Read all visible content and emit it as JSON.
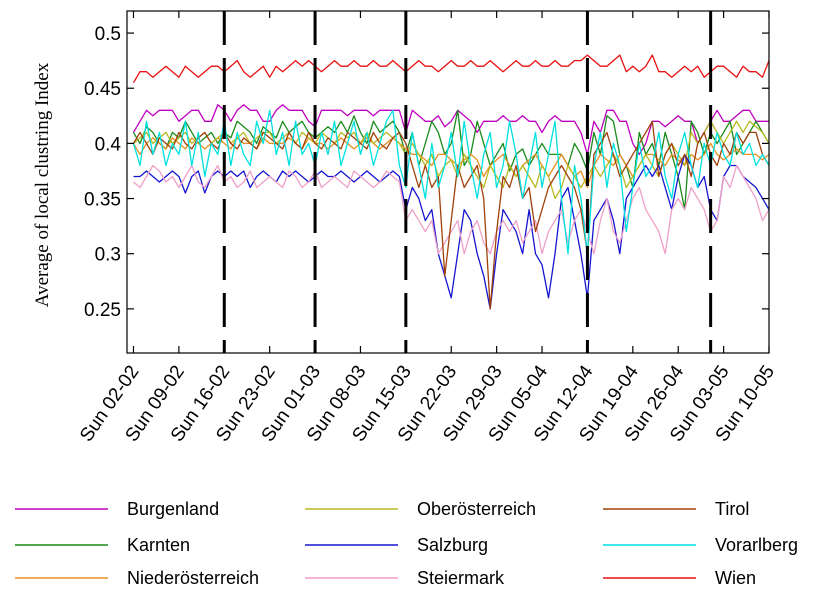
{
  "chart_data": {
    "type": "line",
    "title": "",
    "xlabel": "",
    "ylabel": "Average of local clustring Index",
    "ylim": [
      0.21,
      0.52
    ],
    "yticks": [
      0.25,
      0.3,
      0.35,
      0.4,
      0.45,
      0.5
    ],
    "ytick_labels": [
      "0.25",
      "0.3",
      "0.35",
      "0.4",
      "0.45",
      "0.5"
    ],
    "x_range_days": [
      -1,
      98
    ],
    "xtick_days": [
      0,
      7,
      14,
      21,
      28,
      35,
      42,
      49,
      56,
      63,
      70,
      77,
      84,
      91,
      98
    ],
    "xtick_labels": [
      "Sun 02-02",
      "Sun 09-02",
      "Sun 16-02",
      "Sun 23-02",
      "Sun 01-03",
      "Sun 08-03",
      "Sun 15-03",
      "Sun 22-03",
      "Sun 29-03",
      "Sun 05-04",
      "Sun 12-04",
      "Sun 19-04",
      "Sun 26-04",
      "Sun 03-05",
      "Sun 10-05"
    ],
    "vlines_days": [
      14,
      28,
      42,
      70,
      89
    ],
    "grid": false,
    "legend_position": "bottom",
    "series": [
      {
        "name": "Burgenland",
        "color": "#c000c0",
        "values": [
          0.41,
          0.42,
          0.43,
          0.425,
          0.43,
          0.43,
          0.43,
          0.42,
          0.425,
          0.43,
          0.43,
          0.42,
          0.42,
          0.435,
          0.43,
          0.42,
          0.43,
          0.435,
          0.43,
          0.43,
          0.42,
          0.42,
          0.43,
          0.435,
          0.43,
          0.43,
          0.43,
          0.42,
          0.415,
          0.43,
          0.43,
          0.43,
          0.43,
          0.425,
          0.43,
          0.43,
          0.43,
          0.425,
          0.43,
          0.43,
          0.43,
          0.43,
          0.41,
          0.43,
          0.425,
          0.42,
          0.42,
          0.425,
          0.415,
          0.42,
          0.43,
          0.425,
          0.42,
          0.41,
          0.42,
          0.42,
          0.42,
          0.425,
          0.42,
          0.42,
          0.425,
          0.42,
          0.42,
          0.41,
          0.42,
          0.425,
          0.42,
          0.42,
          0.42,
          0.41,
          0.39,
          0.42,
          0.41,
          0.43,
          0.43,
          0.42,
          0.42,
          0.4,
          0.39,
          0.4,
          0.42,
          0.42,
          0.415,
          0.42,
          0.425,
          0.42,
          0.42,
          0.4,
          0.41,
          0.42,
          0.43,
          0.42,
          0.42,
          0.425,
          0.43,
          0.43,
          0.42,
          0.42,
          0.42
        ]
      },
      {
        "name": "Karnten",
        "color": "#1a8a1a",
        "values": [
          0.41,
          0.4,
          0.415,
          0.41,
          0.4,
          0.395,
          0.41,
          0.405,
          0.42,
          0.41,
          0.4,
          0.405,
          0.41,
          0.4,
          0.41,
          0.405,
          0.42,
          0.415,
          0.41,
          0.4,
          0.415,
          0.41,
          0.405,
          0.42,
          0.41,
          0.415,
          0.42,
          0.41,
          0.405,
          0.41,
          0.415,
          0.41,
          0.42,
          0.41,
          0.425,
          0.41,
          0.4,
          0.42,
          0.41,
          0.415,
          0.42,
          0.41,
          0.39,
          0.41,
          0.38,
          0.4,
          0.42,
          0.41,
          0.39,
          0.4,
          0.43,
          0.38,
          0.39,
          0.42,
          0.4,
          0.38,
          0.39,
          0.4,
          0.375,
          0.39,
          0.395,
          0.38,
          0.39,
          0.4,
          0.39,
          0.39,
          0.39,
          0.38,
          0.4,
          0.39,
          0.375,
          0.41,
          0.39,
          0.425,
          0.42,
          0.39,
          0.38,
          0.36,
          0.41,
          0.39,
          0.4,
          0.38,
          0.41,
          0.39,
          0.37,
          0.34,
          0.42,
          0.41,
          0.39,
          0.41,
          0.4,
          0.41,
          0.42,
          0.39,
          0.4,
          0.41,
          0.42,
          0.41,
          0.4
        ]
      },
      {
        "name": "Niederösterreich",
        "color": "#e69020",
        "values": [
          0.4,
          0.39,
          0.4,
          0.405,
          0.4,
          0.395,
          0.405,
          0.4,
          0.395,
          0.405,
          0.4,
          0.395,
          0.4,
          0.405,
          0.4,
          0.395,
          0.405,
          0.4,
          0.4,
          0.395,
          0.405,
          0.4,
          0.4,
          0.4,
          0.405,
          0.4,
          0.395,
          0.405,
          0.4,
          0.4,
          0.395,
          0.4,
          0.405,
          0.4,
          0.395,
          0.4,
          0.405,
          0.4,
          0.395,
          0.4,
          0.405,
          0.4,
          0.395,
          0.39,
          0.39,
          0.385,
          0.38,
          0.39,
          0.39,
          0.385,
          0.38,
          0.385,
          0.39,
          0.385,
          0.37,
          0.38,
          0.385,
          0.39,
          0.38,
          0.37,
          0.38,
          0.385,
          0.39,
          0.38,
          0.37,
          0.38,
          0.39,
          0.38,
          0.37,
          0.375,
          0.36,
          0.38,
          0.39,
          0.385,
          0.38,
          0.39,
          0.38,
          0.37,
          0.38,
          0.39,
          0.39,
          0.385,
          0.38,
          0.39,
          0.385,
          0.38,
          0.39,
          0.385,
          0.39,
          0.4,
          0.39,
          0.385,
          0.39,
          0.395,
          0.39,
          0.39,
          0.39,
          0.385,
          0.39
        ]
      },
      {
        "name": "Oberösterreich",
        "color": "#b8b820",
        "values": [
          0.4,
          0.405,
          0.41,
          0.4,
          0.405,
          0.41,
          0.4,
          0.405,
          0.41,
          0.4,
          0.405,
          0.41,
          0.4,
          0.405,
          0.41,
          0.4,
          0.405,
          0.41,
          0.4,
          0.405,
          0.41,
          0.41,
          0.4,
          0.405,
          0.41,
          0.4,
          0.41,
          0.405,
          0.4,
          0.41,
          0.405,
          0.4,
          0.41,
          0.405,
          0.41,
          0.4,
          0.41,
          0.4,
          0.405,
          0.41,
          0.405,
          0.4,
          0.39,
          0.4,
          0.39,
          0.38,
          0.39,
          0.37,
          0.38,
          0.385,
          0.37,
          0.39,
          0.38,
          0.37,
          0.36,
          0.38,
          0.37,
          0.36,
          0.38,
          0.37,
          0.38,
          0.37,
          0.36,
          0.38,
          0.37,
          0.35,
          0.36,
          0.38,
          0.37,
          0.36,
          0.37,
          0.38,
          0.37,
          0.38,
          0.39,
          0.38,
          0.36,
          0.37,
          0.38,
          0.39,
          0.38,
          0.37,
          0.39,
          0.4,
          0.39,
          0.38,
          0.41,
          0.4,
          0.41,
          0.42,
          0.41,
          0.4,
          0.41,
          0.42,
          0.41,
          0.42,
          0.415,
          0.41,
          0.4
        ]
      },
      {
        "name": "Salzburg",
        "color": "#1515d0",
        "values": [
          0.37,
          0.37,
          0.375,
          0.37,
          0.365,
          0.37,
          0.375,
          0.37,
          0.355,
          0.37,
          0.375,
          0.355,
          0.37,
          0.375,
          0.37,
          0.375,
          0.37,
          0.375,
          0.36,
          0.37,
          0.375,
          0.37,
          0.365,
          0.375,
          0.37,
          0.375,
          0.37,
          0.365,
          0.37,
          0.375,
          0.37,
          0.37,
          0.375,
          0.37,
          0.365,
          0.37,
          0.375,
          0.37,
          0.365,
          0.37,
          0.375,
          0.37,
          0.34,
          0.36,
          0.35,
          0.33,
          0.34,
          0.3,
          0.28,
          0.26,
          0.3,
          0.34,
          0.33,
          0.3,
          0.28,
          0.25,
          0.3,
          0.34,
          0.33,
          0.32,
          0.3,
          0.34,
          0.3,
          0.29,
          0.26,
          0.3,
          0.35,
          0.36,
          0.33,
          0.3,
          0.26,
          0.33,
          0.34,
          0.35,
          0.33,
          0.3,
          0.35,
          0.36,
          0.37,
          0.38,
          0.37,
          0.38,
          0.36,
          0.34,
          0.37,
          0.39,
          0.38,
          0.36,
          0.37,
          0.34,
          0.33,
          0.37,
          0.38,
          0.38,
          0.37,
          0.365,
          0.36,
          0.35,
          0.34
        ]
      },
      {
        "name": "Steiermark",
        "color": "#f0a0c8",
        "values": [
          0.365,
          0.36,
          0.37,
          0.38,
          0.375,
          0.365,
          0.37,
          0.36,
          0.37,
          0.38,
          0.365,
          0.36,
          0.37,
          0.38,
          0.365,
          0.37,
          0.36,
          0.365,
          0.375,
          0.36,
          0.365,
          0.37,
          0.365,
          0.36,
          0.375,
          0.37,
          0.36,
          0.365,
          0.375,
          0.36,
          0.365,
          0.37,
          0.365,
          0.36,
          0.375,
          0.37,
          0.365,
          0.36,
          0.365,
          0.375,
          0.37,
          0.365,
          0.33,
          0.34,
          0.33,
          0.32,
          0.33,
          0.3,
          0.31,
          0.32,
          0.33,
          0.3,
          0.32,
          0.33,
          0.31,
          0.3,
          0.32,
          0.33,
          0.32,
          0.33,
          0.31,
          0.32,
          0.33,
          0.3,
          0.32,
          0.33,
          0.34,
          0.31,
          0.33,
          0.34,
          0.32,
          0.3,
          0.33,
          0.35,
          0.32,
          0.31,
          0.33,
          0.35,
          0.36,
          0.34,
          0.33,
          0.32,
          0.3,
          0.34,
          0.35,
          0.34,
          0.36,
          0.35,
          0.34,
          0.32,
          0.33,
          0.37,
          0.36,
          0.38,
          0.37,
          0.36,
          0.35,
          0.33,
          0.34
        ]
      },
      {
        "name": "Tirol",
        "color": "#a0400a",
        "values": [
          0.4,
          0.41,
          0.4,
          0.39,
          0.405,
          0.4,
          0.395,
          0.41,
          0.4,
          0.395,
          0.405,
          0.41,
          0.4,
          0.395,
          0.41,
          0.4,
          0.395,
          0.405,
          0.4,
          0.395,
          0.41,
          0.405,
          0.4,
          0.395,
          0.41,
          0.4,
          0.395,
          0.41,
          0.4,
          0.395,
          0.405,
          0.4,
          0.395,
          0.41,
          0.405,
          0.4,
          0.395,
          0.41,
          0.4,
          0.395,
          0.405,
          0.41,
          0.4,
          0.38,
          0.36,
          0.38,
          0.36,
          0.37,
          0.28,
          0.33,
          0.38,
          0.36,
          0.37,
          0.38,
          0.35,
          0.25,
          0.32,
          0.37,
          0.36,
          0.38,
          0.35,
          0.36,
          0.32,
          0.34,
          0.36,
          0.37,
          0.38,
          0.37,
          0.36,
          0.34,
          0.3,
          0.39,
          0.4,
          0.41,
          0.39,
          0.37,
          0.38,
          0.39,
          0.4,
          0.41,
          0.42,
          0.37,
          0.39,
          0.4,
          0.38,
          0.39,
          0.37,
          0.4,
          0.41,
          0.39,
          0.38,
          0.4,
          0.39,
          0.41,
          0.4,
          0.41,
          0.41,
          0.39,
          0.38
        ]
      },
      {
        "name": "Vorarlberg",
        "color": "#00e0e0",
        "values": [
          0.4,
          0.38,
          0.42,
          0.39,
          0.41,
          0.38,
          0.4,
          0.39,
          0.42,
          0.38,
          0.41,
          0.37,
          0.4,
          0.39,
          0.42,
          0.38,
          0.41,
          0.39,
          0.38,
          0.42,
          0.4,
          0.43,
          0.39,
          0.41,
          0.38,
          0.42,
          0.39,
          0.4,
          0.38,
          0.41,
          0.39,
          0.42,
          0.38,
          0.4,
          0.42,
          0.39,
          0.41,
          0.38,
          0.4,
          0.42,
          0.43,
          0.38,
          0.36,
          0.41,
          0.38,
          0.35,
          0.4,
          0.36,
          0.38,
          0.41,
          0.37,
          0.42,
          0.38,
          0.35,
          0.39,
          0.41,
          0.36,
          0.38,
          0.42,
          0.39,
          0.35,
          0.38,
          0.41,
          0.36,
          0.39,
          0.42,
          0.35,
          0.3,
          0.38,
          0.35,
          0.3,
          0.38,
          0.41,
          0.36,
          0.4,
          0.38,
          0.32,
          0.36,
          0.4,
          0.37,
          0.38,
          0.41,
          0.37,
          0.35,
          0.39,
          0.41,
          0.38,
          0.36,
          0.4,
          0.38,
          0.41,
          0.39,
          0.38,
          0.41,
          0.39,
          0.4,
          0.38,
          0.39,
          0.38
        ]
      },
      {
        "name": "Wien",
        "color": "#e81010",
        "values": [
          0.455,
          0.465,
          0.465,
          0.46,
          0.465,
          0.47,
          0.465,
          0.46,
          0.47,
          0.465,
          0.46,
          0.465,
          0.47,
          0.47,
          0.465,
          0.47,
          0.475,
          0.465,
          0.46,
          0.465,
          0.47,
          0.46,
          0.47,
          0.465,
          0.47,
          0.475,
          0.47,
          0.475,
          0.47,
          0.465,
          0.47,
          0.475,
          0.47,
          0.47,
          0.475,
          0.47,
          0.47,
          0.475,
          0.47,
          0.47,
          0.475,
          0.47,
          0.465,
          0.47,
          0.475,
          0.47,
          0.47,
          0.465,
          0.47,
          0.475,
          0.47,
          0.47,
          0.475,
          0.47,
          0.47,
          0.475,
          0.47,
          0.465,
          0.47,
          0.475,
          0.47,
          0.47,
          0.475,
          0.47,
          0.47,
          0.475,
          0.47,
          0.47,
          0.475,
          0.475,
          0.48,
          0.475,
          0.47,
          0.47,
          0.475,
          0.48,
          0.465,
          0.47,
          0.465,
          0.47,
          0.48,
          0.465,
          0.465,
          0.46,
          0.465,
          0.47,
          0.465,
          0.47,
          0.46,
          0.465,
          0.47,
          0.47,
          0.465,
          0.46,
          0.47,
          0.465,
          0.465,
          0.46,
          0.475
        ]
      }
    ]
  }
}
